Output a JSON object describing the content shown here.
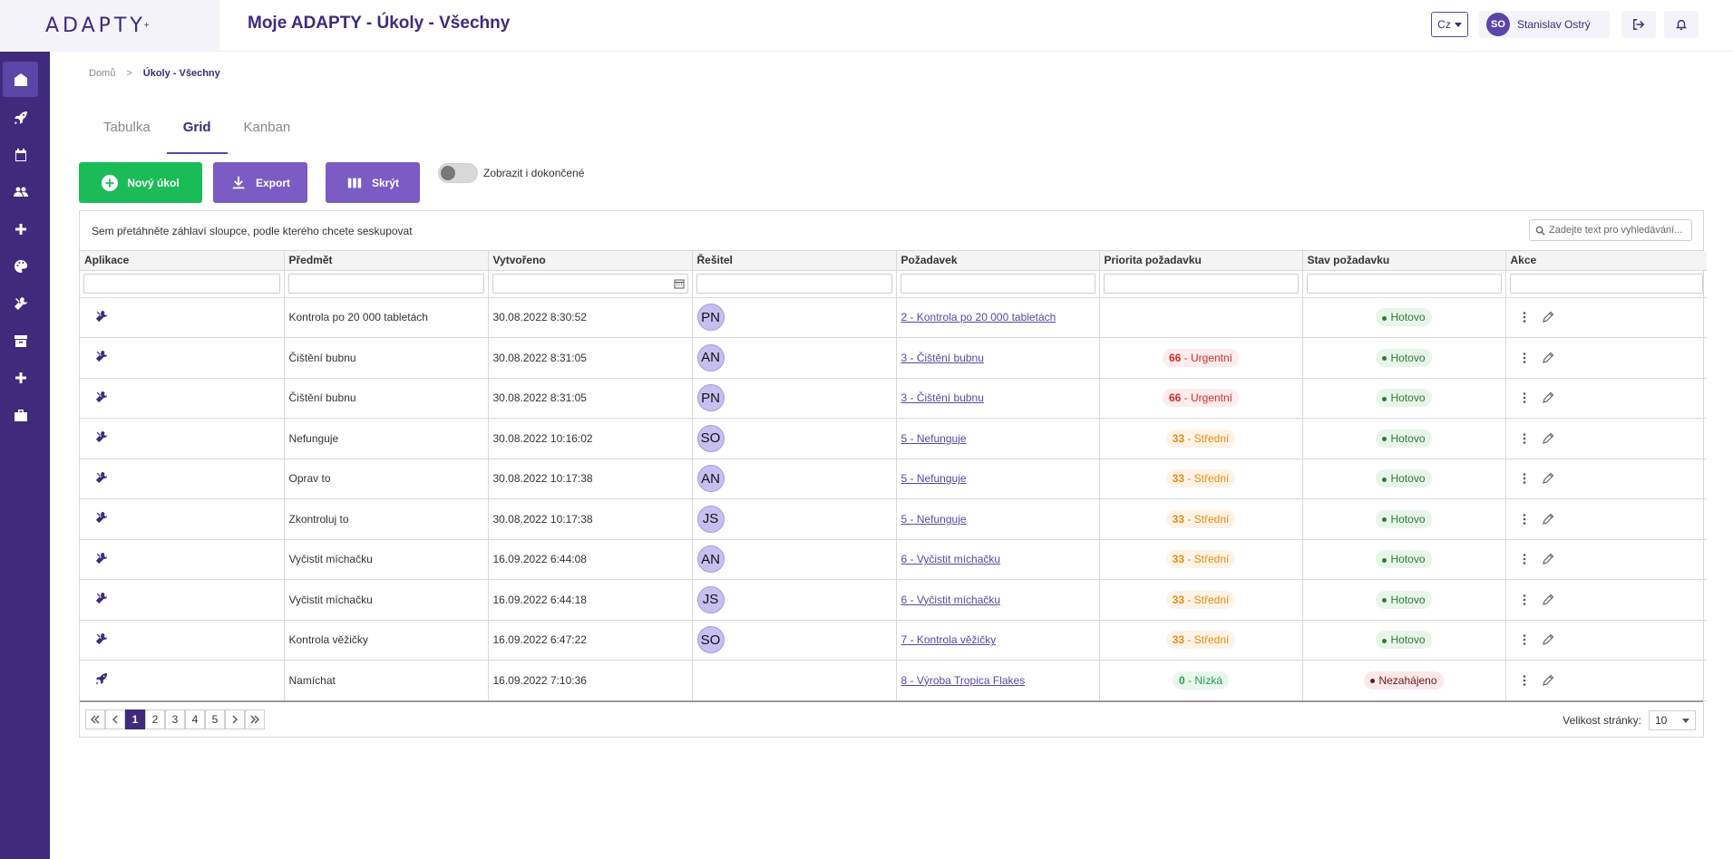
{
  "header": {
    "logo": "ADAPTY",
    "title": "Moje ADAPTY - Úkoly - Všechny",
    "language": "Cz",
    "user_initials": "SO",
    "user_name": "Stanislav Ostrý"
  },
  "breadcrumb": {
    "home": "Domů",
    "separator": ">",
    "current": "Úkoly - Všechny"
  },
  "tabs": [
    "Tabulka",
    "Grid",
    "Kanban"
  ],
  "active_tab": "Grid",
  "toolbar": {
    "new_task": "Nový úkol",
    "export": "Export",
    "hide": "Skrýt",
    "show_completed": "Zobrazit i dokončené",
    "show_completed_on": false
  },
  "grid": {
    "group_hint": "Sem přetáhněte záhlaví sloupce, podle kterého chcete seskupovat",
    "search_placeholder": "Zadejte text pro vyhledávání...",
    "columns": [
      "Aplikace",
      "Předmět",
      "Vytvořeno",
      "Řešitel",
      "Požadavek",
      "Priorita požadavku",
      "Stav požadavku",
      "Akce"
    ],
    "rows": [
      {
        "app_icon": "tools-icon",
        "subject": "Kontrola po 20 000 tabletách",
        "created": "30.08.2022 8:30:52",
        "resolver": "PN",
        "request": "2 - Kontrola po 20 000 tabletách",
        "priority_num": "",
        "priority_label": "",
        "priority_level": "",
        "status": "Hotovo",
        "status_kind": "done"
      },
      {
        "app_icon": "tools-icon",
        "subject": "Čištění bubnu",
        "created": "30.08.2022 8:31:05",
        "resolver": "AN",
        "request": "3 - Čištění bubnu",
        "priority_num": "66",
        "priority_label": " - Urgentní",
        "priority_level": "urgent",
        "status": "Hotovo",
        "status_kind": "done"
      },
      {
        "app_icon": "tools-icon",
        "subject": "Čištění bubnu",
        "created": "30.08.2022 8:31:05",
        "resolver": "PN",
        "request": "3 - Čištění bubnu",
        "priority_num": "66",
        "priority_label": " - Urgentní",
        "priority_level": "urgent",
        "status": "Hotovo",
        "status_kind": "done"
      },
      {
        "app_icon": "tools-icon",
        "subject": "Nefunguje",
        "created": "30.08.2022 10:16:02",
        "resolver": "SO",
        "request": "5 - Nefunguje",
        "priority_num": "33",
        "priority_label": " - Střední",
        "priority_level": "mid",
        "status": "Hotovo",
        "status_kind": "done"
      },
      {
        "app_icon": "tools-icon",
        "subject": "Oprav to",
        "created": "30.08.2022 10:17:38",
        "resolver": "AN",
        "request": "5 - Nefunguje",
        "priority_num": "33",
        "priority_label": " - Střední",
        "priority_level": "mid",
        "status": "Hotovo",
        "status_kind": "done"
      },
      {
        "app_icon": "tools-icon",
        "subject": "Zkontroluj to",
        "created": "30.08.2022 10:17:38",
        "resolver": "JS",
        "request": "5 - Nefunguje",
        "priority_num": "33",
        "priority_label": " - Střední",
        "priority_level": "mid",
        "status": "Hotovo",
        "status_kind": "done"
      },
      {
        "app_icon": "tools-icon",
        "subject": "Vyčistit míchačku",
        "created": "16.09.2022 6:44:08",
        "resolver": "AN",
        "request": "6 - Vyčistit míchačku",
        "priority_num": "33",
        "priority_label": " - Střední",
        "priority_level": "mid",
        "status": "Hotovo",
        "status_kind": "done"
      },
      {
        "app_icon": "tools-icon",
        "subject": "Vyčistit míchačku",
        "created": "16.09.2022 6:44:18",
        "resolver": "JS",
        "request": "6 - Vyčistit míchačku",
        "priority_num": "33",
        "priority_label": " - Střední",
        "priority_level": "mid",
        "status": "Hotovo",
        "status_kind": "done"
      },
      {
        "app_icon": "tools-icon",
        "subject": "Kontrola věžičky",
        "created": "16.09.2022 6:47:22",
        "resolver": "SO",
        "request": "7 - Kontrola věžičky",
        "priority_num": "33",
        "priority_label": " - Střední",
        "priority_level": "mid",
        "status": "Hotovo",
        "status_kind": "done"
      },
      {
        "app_icon": "rocket-icon",
        "subject": "Namíchat",
        "created": "16.09.2022 7:10:36",
        "resolver": "",
        "request": "8 - Výroba Tropica Flakes",
        "priority_num": "0",
        "priority_label": " - Nízká",
        "priority_level": "low",
        "status": "Nezahájeno",
        "status_kind": "notstarted"
      }
    ]
  },
  "pager": {
    "pages": [
      "1",
      "2",
      "3",
      "4",
      "5"
    ],
    "current_page": "1",
    "page_size_label": "Velikost stránky:",
    "page_size": "10"
  },
  "colors": {
    "brand": "#3f2a7c",
    "accent": "#5b45a6",
    "green_button": "#1bbc58",
    "purple_button": "#7a5cc4"
  },
  "sidebar_icons": [
    "home-icon",
    "rocket-icon",
    "calendar-icon",
    "users-icon",
    "plus-icon",
    "palette-icon",
    "tools-icon",
    "archive-icon",
    "plus-icon",
    "briefcase-icon"
  ]
}
